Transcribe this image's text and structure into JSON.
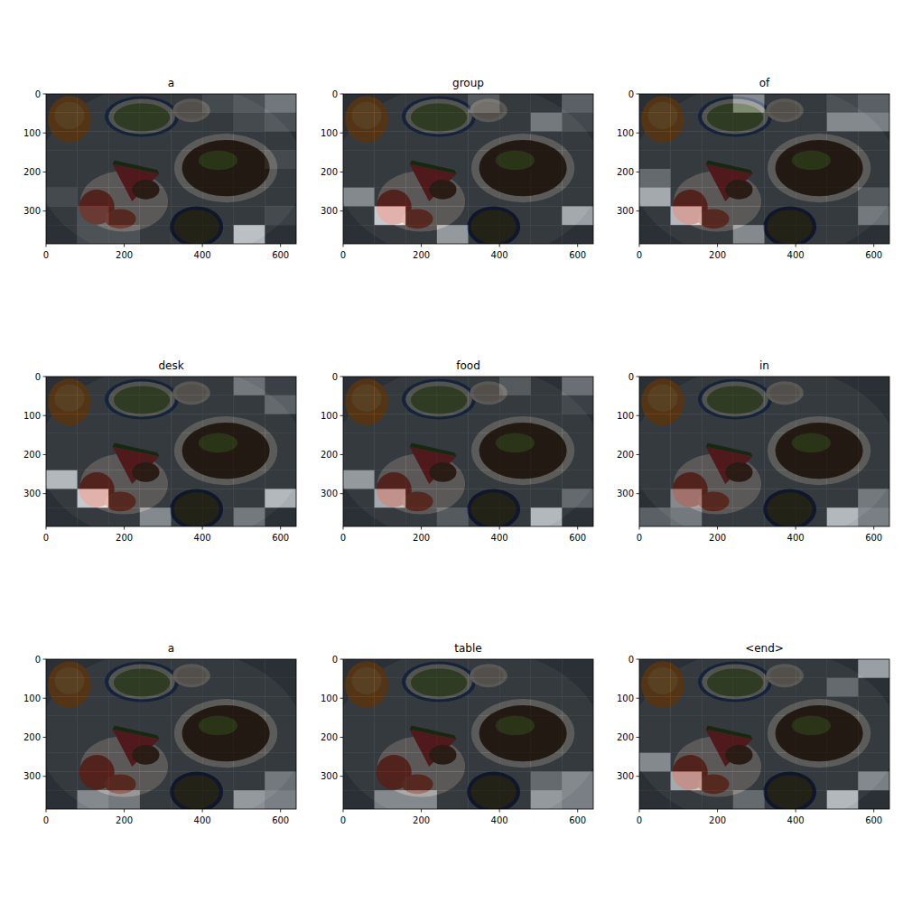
{
  "chart_data": [
    {
      "type": "heatmap",
      "title": "a",
      "xlim": [
        0,
        640
      ],
      "ylim": [
        384,
        0
      ],
      "xticks": [
        0,
        200,
        400,
        600
      ],
      "yticks": [
        0,
        100,
        200,
        300
      ],
      "cells": [
        [
          0,
          0,
          0,
          0,
          0,
          0.1,
          0.2,
          0.45
        ],
        [
          0,
          0,
          0,
          0,
          0,
          0,
          0.1,
          0.2
        ],
        [
          0,
          0,
          0,
          0,
          0,
          0,
          0,
          0
        ],
        [
          0,
          0,
          0,
          0,
          0,
          0,
          0,
          0.1
        ],
        [
          0,
          0,
          0,
          0,
          0,
          0,
          0,
          0
        ],
        [
          0.1,
          0,
          0,
          0,
          0,
          0,
          0,
          0
        ],
        [
          0,
          0.15,
          0,
          0,
          0,
          0,
          0,
          0.1
        ],
        [
          0,
          0.15,
          0.15,
          0,
          0,
          0,
          0.85,
          0
        ]
      ]
    },
    {
      "type": "heatmap",
      "title": "group",
      "xlim": [
        0,
        640
      ],
      "ylim": [
        384,
        0
      ],
      "xticks": [
        0,
        200,
        400,
        600
      ],
      "yticks": [
        0,
        100,
        200,
        300
      ],
      "cells": [
        [
          0,
          0,
          0,
          0,
          0.2,
          0,
          0,
          0.3
        ],
        [
          0,
          0,
          0,
          0,
          0,
          0,
          0.4,
          0.15
        ],
        [
          0,
          0,
          0,
          0,
          0,
          0,
          0,
          0
        ],
        [
          0,
          0,
          0,
          0,
          0,
          0,
          0,
          0
        ],
        [
          0,
          0,
          0,
          0,
          0,
          0,
          0,
          0
        ],
        [
          0.5,
          0,
          0,
          0,
          0,
          0,
          0,
          0
        ],
        [
          0,
          0.9,
          0,
          0,
          0,
          0,
          0,
          0.7
        ],
        [
          0,
          0,
          0,
          0.6,
          0,
          0,
          0,
          0
        ]
      ]
    },
    {
      "type": "heatmap",
      "title": "of",
      "xlim": [
        0,
        640
      ],
      "ylim": [
        384,
        0
      ],
      "xticks": [
        0,
        200,
        400,
        600
      ],
      "yticks": [
        0,
        100,
        200,
        300
      ],
      "cells": [
        [
          0,
          0,
          0,
          0.5,
          0,
          0,
          0.15,
          0.3
        ],
        [
          0,
          0,
          0,
          0,
          0,
          0,
          0.5,
          0.5
        ],
        [
          0,
          0,
          0,
          0,
          0,
          0,
          0,
          0
        ],
        [
          0,
          0,
          0,
          0,
          0,
          0,
          0,
          0
        ],
        [
          0.3,
          0,
          0,
          0,
          0,
          0,
          0,
          0
        ],
        [
          0.7,
          0,
          0,
          0,
          0,
          0,
          0,
          0.2
        ],
        [
          0,
          0.8,
          0,
          0,
          0,
          0,
          0,
          0.4
        ],
        [
          0,
          0,
          0,
          0.5,
          0,
          0,
          0,
          0
        ]
      ]
    },
    {
      "type": "heatmap",
      "title": "desk",
      "xlim": [
        0,
        640
      ],
      "ylim": [
        384,
        0
      ],
      "xticks": [
        0,
        200,
        400,
        600
      ],
      "yticks": [
        0,
        100,
        200,
        300
      ],
      "cells": [
        [
          0,
          0,
          0,
          0,
          0,
          0,
          0.4,
          0.1
        ],
        [
          0,
          0,
          0,
          0,
          0,
          0,
          0,
          0.3
        ],
        [
          0,
          0,
          0,
          0,
          0,
          0,
          0,
          0
        ],
        [
          0,
          0,
          0,
          0,
          0,
          0,
          0,
          0
        ],
        [
          0,
          0,
          0,
          0,
          0,
          0,
          0,
          0
        ],
        [
          0.8,
          0,
          0,
          0,
          0,
          0,
          0,
          0
        ],
        [
          0,
          0.9,
          0,
          0,
          0,
          0,
          0,
          0.8
        ],
        [
          0,
          0,
          0,
          0.5,
          0,
          0,
          0.4,
          0
        ]
      ]
    },
    {
      "type": "heatmap",
      "title": "food",
      "xlim": [
        0,
        640
      ],
      "ylim": [
        384,
        0
      ],
      "xticks": [
        0,
        200,
        400,
        600
      ],
      "yticks": [
        0,
        100,
        200,
        300
      ],
      "cells": [
        [
          0,
          0,
          0,
          0,
          0,
          0.2,
          0,
          0.4
        ],
        [
          0,
          0,
          0,
          0,
          0,
          0,
          0,
          0.1
        ],
        [
          0,
          0,
          0,
          0,
          0,
          0,
          0,
          0
        ],
        [
          0,
          0,
          0,
          0,
          0,
          0,
          0,
          0
        ],
        [
          0,
          0,
          0,
          0,
          0,
          0,
          0,
          0
        ],
        [
          0.6,
          0,
          0,
          0,
          0,
          0,
          0,
          0
        ],
        [
          0,
          0.7,
          0,
          0,
          0,
          0,
          0,
          0.3
        ],
        [
          0,
          0,
          0,
          0.2,
          0,
          0,
          0.8,
          0
        ]
      ]
    },
    {
      "type": "heatmap",
      "title": "in",
      "xlim": [
        0,
        640
      ],
      "ylim": [
        384,
        0
      ],
      "xticks": [
        0,
        200,
        400,
        600
      ],
      "yticks": [
        0,
        100,
        200,
        300
      ],
      "cells": [
        [
          0,
          0,
          0,
          0,
          0,
          0,
          0,
          0
        ],
        [
          0,
          0,
          0,
          0,
          0,
          0,
          0,
          0
        ],
        [
          0,
          0,
          0,
          0,
          0,
          0,
          0,
          0
        ],
        [
          0,
          0,
          0,
          0,
          0,
          0,
          0,
          0
        ],
        [
          0,
          0,
          0,
          0,
          0,
          0,
          0,
          0
        ],
        [
          0,
          0,
          0,
          0,
          0,
          0,
          0,
          0
        ],
        [
          0,
          0.5,
          0,
          0,
          0,
          0,
          0,
          0.4
        ],
        [
          0.3,
          0.4,
          0,
          0,
          0,
          0,
          0.8,
          0.5
        ]
      ]
    },
    {
      "type": "heatmap",
      "title": "a",
      "xlim": [
        0,
        640
      ],
      "ylim": [
        384,
        0
      ],
      "xticks": [
        0,
        200,
        400,
        600
      ],
      "yticks": [
        0,
        100,
        200,
        300
      ],
      "cells": [
        [
          0,
          0,
          0,
          0,
          0,
          0,
          0,
          0
        ],
        [
          0,
          0,
          0,
          0,
          0,
          0,
          0,
          0
        ],
        [
          0,
          0,
          0,
          0,
          0,
          0,
          0,
          0
        ],
        [
          0,
          0,
          0,
          0,
          0,
          0,
          0,
          0
        ],
        [
          0,
          0,
          0,
          0,
          0,
          0,
          0,
          0
        ],
        [
          0,
          0,
          0,
          0,
          0,
          0,
          0,
          0
        ],
        [
          0,
          0,
          0,
          0,
          0,
          0,
          0,
          0.4
        ],
        [
          0,
          0.5,
          0.4,
          0,
          0,
          0,
          0.6,
          0.5
        ]
      ]
    },
    {
      "type": "heatmap",
      "title": "table",
      "xlim": [
        0,
        640
      ],
      "ylim": [
        384,
        0
      ],
      "xticks": [
        0,
        200,
        400,
        600
      ],
      "yticks": [
        0,
        100,
        200,
        300
      ],
      "cells": [
        [
          0,
          0,
          0,
          0,
          0,
          0,
          0,
          0
        ],
        [
          0,
          0,
          0,
          0,
          0,
          0,
          0,
          0
        ],
        [
          0,
          0,
          0,
          0,
          0,
          0,
          0,
          0
        ],
        [
          0,
          0,
          0,
          0,
          0,
          0,
          0,
          0
        ],
        [
          0,
          0,
          0,
          0,
          0,
          0,
          0,
          0
        ],
        [
          0,
          0,
          0,
          0,
          0,
          0,
          0,
          0
        ],
        [
          0,
          0,
          0,
          0,
          0,
          0,
          0.3,
          0.5
        ],
        [
          0,
          0.5,
          0.5,
          0,
          0,
          0,
          0.6,
          0.5
        ]
      ]
    },
    {
      "type": "heatmap",
      "title": "<end>",
      "xlim": [
        0,
        640
      ],
      "ylim": [
        384,
        0
      ],
      "xticks": [
        0,
        200,
        400,
        600
      ],
      "yticks": [
        0,
        100,
        200,
        300
      ],
      "cells": [
        [
          0,
          0,
          0,
          0,
          0,
          0,
          0,
          0.7
        ],
        [
          0,
          0,
          0,
          0,
          0,
          0,
          0.3,
          0
        ],
        [
          0,
          0,
          0,
          0,
          0,
          0,
          0,
          0
        ],
        [
          0,
          0,
          0,
          0,
          0,
          0,
          0,
          0
        ],
        [
          0,
          0,
          0,
          0,
          0,
          0,
          0,
          0
        ],
        [
          0.5,
          0,
          0,
          0,
          0,
          0,
          0,
          0
        ],
        [
          0,
          0.7,
          0,
          0,
          0,
          0,
          0,
          0.5
        ],
        [
          0,
          0,
          0,
          0.3,
          0,
          0,
          0.8,
          0
        ]
      ]
    }
  ]
}
